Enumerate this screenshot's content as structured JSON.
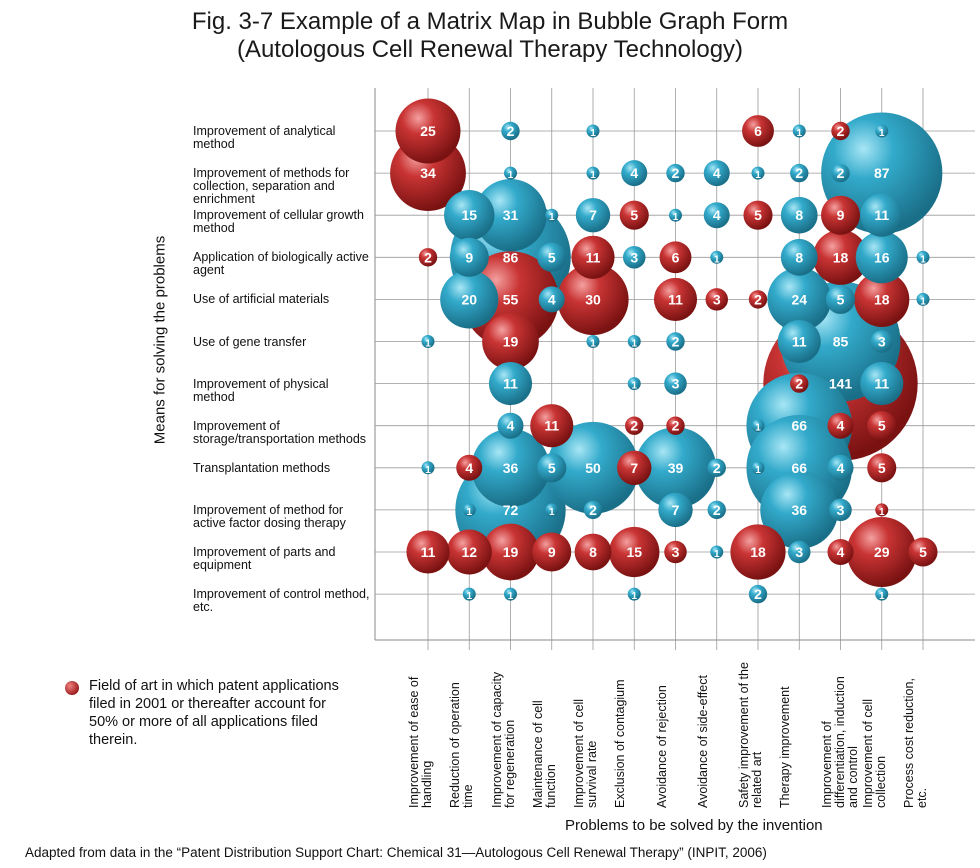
{
  "title_line1": "Fig. 3-7 Example of a Matrix Map in Bubble Graph Form",
  "title_line2": "(Autologous Cell Renewal Therapy Technology)",
  "legend_text": "Field of art in which patent applications filed in 2001 or thereafter account for 50% or more of all applications filed therein.",
  "source_note": "Adapted from data in the “Patent Distribution Support Chart: Chemical 31—Autologous Cell Renewal Therapy” (INPIT, 2006)",
  "colors": {
    "red": "#b32222",
    "blue": "#2aa3c4",
    "grid": "#9a9a9a"
  },
  "chart_data": {
    "type": "bubble-matrix",
    "title": "Fig. 3-7 Example of a Matrix Map in Bubble Graph Form (Autologous Cell Renewal Therapy Technology)",
    "ylabel": "Means for solving the problems",
    "xlabel": "Problems to be solved by the invention",
    "rows": [
      "Improvement of analytical method",
      "Improvement of methods for collection, separation and enrichment",
      "Improvement of cellular growth method",
      "Application of biologically active agent",
      "Use of artificial materials",
      "Use of gene transfer",
      "Improvement of physical method",
      "Improvement of storage/transportation methods",
      "Transplantation methods",
      "Improvement of method for active factor dosing therapy",
      "Improvement of parts and equipment",
      "Improvement of control method, etc."
    ],
    "columns": [
      "Improvement of ease of handling",
      "Reduction of operation time",
      "Improvement of capacity for regeneration",
      "Maintenance of cell function",
      "Improvement of cell survival rate",
      "Exclusion of contagium",
      "Avoidance of rejection",
      "Avoidance of side-effect",
      "Safety improvement of the related art",
      "Therapy improvement",
      "Improvement of differentiation, induction and control",
      "Improvement of cell collection",
      "Process cost reduction, etc."
    ],
    "legend": [
      {
        "color": "red",
        "meaning": "Field of art in which patent applications filed in 2001 or thereafter account for 50% or more of all applications filed therein."
      }
    ],
    "bubbles": [
      {
        "row": 0,
        "col": 0,
        "value": 25,
        "color": "red"
      },
      {
        "row": 0,
        "col": 2,
        "value": 2,
        "color": "blue"
      },
      {
        "row": 0,
        "col": 4,
        "value": 1,
        "color": "blue"
      },
      {
        "row": 0,
        "col": 8,
        "value": 6,
        "color": "red"
      },
      {
        "row": 0,
        "col": 9,
        "value": 1,
        "color": "blue"
      },
      {
        "row": 0,
        "col": 10,
        "value": 2,
        "color": "red"
      },
      {
        "row": 0,
        "col": 11,
        "value": 1,
        "color": "blue"
      },
      {
        "row": 1,
        "col": 0,
        "value": 34,
        "color": "red"
      },
      {
        "row": 1,
        "col": 2,
        "value": 1,
        "color": "blue"
      },
      {
        "row": 1,
        "col": 4,
        "value": 1,
        "color": "blue"
      },
      {
        "row": 1,
        "col": 5,
        "value": 4,
        "color": "blue"
      },
      {
        "row": 1,
        "col": 6,
        "value": 2,
        "color": "blue"
      },
      {
        "row": 1,
        "col": 7,
        "value": 4,
        "color": "blue"
      },
      {
        "row": 1,
        "col": 8,
        "value": 1,
        "color": "blue"
      },
      {
        "row": 1,
        "col": 9,
        "value": 2,
        "color": "blue"
      },
      {
        "row": 1,
        "col": 10,
        "value": 2,
        "color": "blue"
      },
      {
        "row": 1,
        "col": 11,
        "value": 87,
        "color": "blue"
      },
      {
        "row": 2,
        "col": 1,
        "value": 15,
        "color": "blue"
      },
      {
        "row": 2,
        "col": 2,
        "value": 31,
        "color": "blue"
      },
      {
        "row": 2,
        "col": 3,
        "value": 1,
        "color": "blue"
      },
      {
        "row": 2,
        "col": 4,
        "value": 7,
        "color": "blue"
      },
      {
        "row": 2,
        "col": 5,
        "value": 5,
        "color": "red"
      },
      {
        "row": 2,
        "col": 6,
        "value": 1,
        "color": "blue"
      },
      {
        "row": 2,
        "col": 7,
        "value": 4,
        "color": "blue"
      },
      {
        "row": 2,
        "col": 8,
        "value": 5,
        "color": "red"
      },
      {
        "row": 2,
        "col": 9,
        "value": 8,
        "color": "blue"
      },
      {
        "row": 2,
        "col": 10,
        "value": 9,
        "color": "red"
      },
      {
        "row": 2,
        "col": 11,
        "value": 11,
        "color": "blue"
      },
      {
        "row": 3,
        "col": 0,
        "value": 2,
        "color": "red"
      },
      {
        "row": 3,
        "col": 1,
        "value": 9,
        "color": "blue"
      },
      {
        "row": 3,
        "col": 2,
        "value": 86,
        "color": "blue"
      },
      {
        "row": 3,
        "col": 3,
        "value": 5,
        "color": "blue"
      },
      {
        "row": 3,
        "col": 4,
        "value": 11,
        "color": "red"
      },
      {
        "row": 3,
        "col": 5,
        "value": 3,
        "color": "blue"
      },
      {
        "row": 3,
        "col": 6,
        "value": 6,
        "color": "red"
      },
      {
        "row": 3,
        "col": 7,
        "value": 1,
        "color": "blue"
      },
      {
        "row": 3,
        "col": 9,
        "value": 8,
        "color": "blue"
      },
      {
        "row": 3,
        "col": 10,
        "value": 18,
        "color": "red"
      },
      {
        "row": 3,
        "col": 11,
        "value": 16,
        "color": "blue"
      },
      {
        "row": 3,
        "col": 12,
        "value": 1,
        "color": "blue"
      },
      {
        "row": 4,
        "col": 1,
        "value": 20,
        "color": "blue"
      },
      {
        "row": 4,
        "col": 2,
        "value": 55,
        "color": "red"
      },
      {
        "row": 4,
        "col": 3,
        "value": 4,
        "color": "blue"
      },
      {
        "row": 4,
        "col": 4,
        "value": 30,
        "color": "red"
      },
      {
        "row": 4,
        "col": 6,
        "value": 11,
        "color": "red"
      },
      {
        "row": 4,
        "col": 7,
        "value": 3,
        "color": "red"
      },
      {
        "row": 4,
        "col": 8,
        "value": 2,
        "color": "red"
      },
      {
        "row": 4,
        "col": 9,
        "value": 24,
        "color": "blue"
      },
      {
        "row": 4,
        "col": 10,
        "value": 5,
        "color": "blue"
      },
      {
        "row": 4,
        "col": 11,
        "value": 18,
        "color": "red"
      },
      {
        "row": 4,
        "col": 12,
        "value": 1,
        "color": "blue"
      },
      {
        "row": 5,
        "col": 0,
        "value": 1,
        "color": "blue"
      },
      {
        "row": 5,
        "col": 2,
        "value": 19,
        "color": "red"
      },
      {
        "row": 5,
        "col": 4,
        "value": 1,
        "color": "blue"
      },
      {
        "row": 5,
        "col": 5,
        "value": 1,
        "color": "blue"
      },
      {
        "row": 5,
        "col": 6,
        "value": 2,
        "color": "blue"
      },
      {
        "row": 5,
        "col": 9,
        "value": 11,
        "color": "blue"
      },
      {
        "row": 5,
        "col": 10,
        "value": 85,
        "color": "blue"
      },
      {
        "row": 5,
        "col": 11,
        "value": 3,
        "color": "blue"
      },
      {
        "row": 6,
        "col": 2,
        "value": 11,
        "color": "blue"
      },
      {
        "row": 6,
        "col": 5,
        "value": 1,
        "color": "blue"
      },
      {
        "row": 6,
        "col": 6,
        "value": 3,
        "color": "blue"
      },
      {
        "row": 6,
        "col": 9,
        "value": 2,
        "color": "red"
      },
      {
        "row": 6,
        "col": 10,
        "value": 141,
        "color": "red"
      },
      {
        "row": 6,
        "col": 11,
        "value": 11,
        "color": "blue"
      },
      {
        "row": 7,
        "col": 2,
        "value": 4,
        "color": "blue"
      },
      {
        "row": 7,
        "col": 3,
        "value": 11,
        "color": "red"
      },
      {
        "row": 7,
        "col": 5,
        "value": 2,
        "color": "red"
      },
      {
        "row": 7,
        "col": 6,
        "value": 2,
        "color": "red"
      },
      {
        "row": 7,
        "col": 8,
        "value": 1,
        "color": "blue"
      },
      {
        "row": 7,
        "col": 9,
        "value": 66,
        "color": "blue"
      },
      {
        "row": 7,
        "col": 10,
        "value": 4,
        "color": "red"
      },
      {
        "row": 7,
        "col": 11,
        "value": 5,
        "color": "red"
      },
      {
        "row": 8,
        "col": 0,
        "value": 1,
        "color": "blue"
      },
      {
        "row": 8,
        "col": 1,
        "value": 4,
        "color": "red"
      },
      {
        "row": 8,
        "col": 2,
        "value": 36,
        "color": "blue"
      },
      {
        "row": 8,
        "col": 3,
        "value": 5,
        "color": "blue"
      },
      {
        "row": 8,
        "col": 4,
        "value": 50,
        "color": "blue"
      },
      {
        "row": 8,
        "col": 5,
        "value": 7,
        "color": "red"
      },
      {
        "row": 8,
        "col": 6,
        "value": 39,
        "color": "blue"
      },
      {
        "row": 8,
        "col": 7,
        "value": 2,
        "color": "blue"
      },
      {
        "row": 8,
        "col": 8,
        "value": 1,
        "color": "blue"
      },
      {
        "row": 8,
        "col": 9,
        "value": 66,
        "color": "blue"
      },
      {
        "row": 8,
        "col": 10,
        "value": 4,
        "color": "blue"
      },
      {
        "row": 8,
        "col": 11,
        "value": 5,
        "color": "red"
      },
      {
        "row": 9,
        "col": 1,
        "value": 1,
        "color": "blue"
      },
      {
        "row": 9,
        "col": 2,
        "value": 72,
        "color": "blue"
      },
      {
        "row": 9,
        "col": 3,
        "value": 1,
        "color": "blue"
      },
      {
        "row": 9,
        "col": 4,
        "value": 2,
        "color": "blue"
      },
      {
        "row": 9,
        "col": 6,
        "value": 7,
        "color": "blue"
      },
      {
        "row": 9,
        "col": 7,
        "value": 2,
        "color": "blue"
      },
      {
        "row": 9,
        "col": 9,
        "value": 36,
        "color": "blue"
      },
      {
        "row": 9,
        "col": 10,
        "value": 3,
        "color": "blue"
      },
      {
        "row": 9,
        "col": 11,
        "value": 1,
        "color": "red"
      },
      {
        "row": 10,
        "col": 0,
        "value": 11,
        "color": "red"
      },
      {
        "row": 10,
        "col": 1,
        "value": 12,
        "color": "red"
      },
      {
        "row": 10,
        "col": 2,
        "value": 19,
        "color": "red"
      },
      {
        "row": 10,
        "col": 3,
        "value": 9,
        "color": "red"
      },
      {
        "row": 10,
        "col": 4,
        "value": 8,
        "color": "red"
      },
      {
        "row": 10,
        "col": 5,
        "value": 15,
        "color": "red"
      },
      {
        "row": 10,
        "col": 6,
        "value": 3,
        "color": "red"
      },
      {
        "row": 10,
        "col": 7,
        "value": 1,
        "color": "blue"
      },
      {
        "row": 10,
        "col": 8,
        "value": 18,
        "color": "red"
      },
      {
        "row": 10,
        "col": 9,
        "value": 3,
        "color": "blue"
      },
      {
        "row": 10,
        "col": 10,
        "value": 4,
        "color": "red"
      },
      {
        "row": 10,
        "col": 11,
        "value": 29,
        "color": "red"
      },
      {
        "row": 10,
        "col": 12,
        "value": 5,
        "color": "red"
      },
      {
        "row": 11,
        "col": 1,
        "value": 1,
        "color": "blue"
      },
      {
        "row": 11,
        "col": 2,
        "value": 1,
        "color": "blue"
      },
      {
        "row": 11,
        "col": 5,
        "value": 1,
        "color": "blue"
      },
      {
        "row": 11,
        "col": 8,
        "value": 2,
        "color": "blue"
      },
      {
        "row": 11,
        "col": 11,
        "value": 1,
        "color": "blue"
      }
    ]
  }
}
